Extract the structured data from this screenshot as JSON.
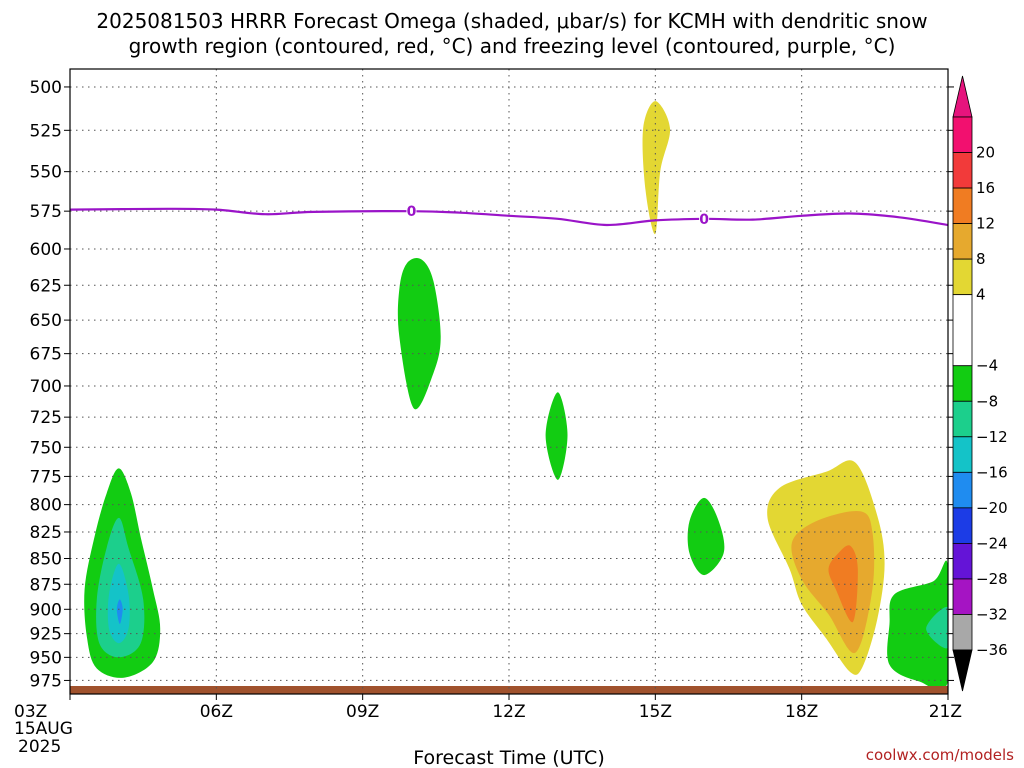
{
  "chart_data": {
    "type": "heatmap",
    "title_line1": "2025081503 HRRR Forecast Omega (shaded, μbar/s) for KCMH with dendritic snow",
    "title_line2": "growth region (contoured, red, °C) and freezing level (contoured, purple, °C)",
    "xlabel": "Forecast Time (UTC)",
    "x_ticks": [
      "03Z",
      "06Z",
      "09Z",
      "12Z",
      "15Z",
      "18Z",
      "21Z"
    ],
    "x_start_label": [
      "03Z",
      "15AUG",
      "2025"
    ],
    "xlim_hours": [
      3,
      21
    ],
    "y_ticks": [
      500,
      525,
      550,
      575,
      600,
      625,
      650,
      675,
      700,
      725,
      750,
      775,
      800,
      825,
      850,
      875,
      900,
      925,
      950,
      975
    ],
    "ylim_mb": [
      490,
      990
    ],
    "y_scale": "log",
    "grid": true,
    "colorbar": {
      "labels": [
        "20",
        "16",
        "12",
        "8",
        "4",
        "−4",
        "−8",
        "−12",
        "−16",
        "−20",
        "−24",
        "−28",
        "−32",
        "−36"
      ],
      "bands": [
        {
          "lo": 20,
          "hi": 24,
          "color": "#f2106f"
        },
        {
          "lo": 16,
          "hi": 20,
          "color": "#f23a3a"
        },
        {
          "lo": 12,
          "hi": 16,
          "color": "#f07c22"
        },
        {
          "lo": 8,
          "hi": 12,
          "color": "#e6a92e"
        },
        {
          "lo": 4,
          "hi": 8,
          "color": "#e3d733"
        },
        {
          "lo": -4,
          "hi": 4,
          "color": "#ffffff"
        },
        {
          "lo": -8,
          "hi": -4,
          "color": "#12cc12"
        },
        {
          "lo": -12,
          "hi": -8,
          "color": "#1ccf8c"
        },
        {
          "lo": -16,
          "hi": -12,
          "color": "#14c3c8"
        },
        {
          "lo": -20,
          "hi": -16,
          "color": "#1f8cf0"
        },
        {
          "lo": -24,
          "hi": -20,
          "color": "#1c3ce6"
        },
        {
          "lo": -28,
          "hi": -24,
          "color": "#6414d7"
        },
        {
          "lo": -32,
          "hi": -28,
          "color": "#a514c3"
        },
        {
          "lo": -36,
          "hi": -32,
          "color": "#a8a8a8"
        }
      ],
      "top_arrow_color": "#e6147d",
      "bottom_arrow_color": "#000000"
    },
    "freezing_level": {
      "color": "#9a14c8",
      "label": "0",
      "label_hours": [
        10,
        16
      ],
      "points": [
        [
          3,
          574
        ],
        [
          5,
          573.5
        ],
        [
          6,
          574
        ],
        [
          7,
          577
        ],
        [
          8,
          575.5
        ],
        [
          10,
          575
        ],
        [
          11,
          576
        ],
        [
          12,
          578
        ],
        [
          13,
          580
        ],
        [
          14,
          584
        ],
        [
          15,
          581
        ],
        [
          16,
          580
        ],
        [
          17,
          580.5
        ],
        [
          18,
          578
        ],
        [
          19,
          576.5
        ],
        [
          20,
          579
        ],
        [
          21,
          584
        ]
      ]
    },
    "omega_regions": [
      {
        "value": -4,
        "color": "#12cc12",
        "points": [
          [
            4.0,
            768
          ],
          [
            4.25,
            790
          ],
          [
            4.45,
            830
          ],
          [
            4.7,
            880
          ],
          [
            4.85,
            920
          ],
          [
            4.7,
            955
          ],
          [
            4.1,
            972
          ],
          [
            3.55,
            962
          ],
          [
            3.35,
            930
          ],
          [
            3.3,
            880
          ],
          [
            3.5,
            830
          ],
          [
            3.75,
            790
          ]
        ]
      },
      {
        "value": -8,
        "color": "#1ccf8c",
        "points": [
          [
            4.0,
            812
          ],
          [
            4.2,
            840
          ],
          [
            4.5,
            890
          ],
          [
            4.45,
            935
          ],
          [
            4.0,
            950
          ],
          [
            3.6,
            935
          ],
          [
            3.55,
            890
          ],
          [
            3.75,
            840
          ]
        ]
      },
      {
        "value": -12,
        "color": "#14c3c8",
        "points": [
          [
            4.0,
            855
          ],
          [
            4.2,
            885
          ],
          [
            4.2,
            920
          ],
          [
            4.0,
            935
          ],
          [
            3.8,
            920
          ],
          [
            3.8,
            885
          ]
        ]
      },
      {
        "value": -16,
        "color": "#1f8cf0",
        "points": [
          [
            4.02,
            890
          ],
          [
            4.08,
            900
          ],
          [
            4.02,
            915
          ],
          [
            3.96,
            900
          ]
        ]
      },
      {
        "value": -4,
        "color": "#12cc12",
        "points": [
          [
            10.2,
            607
          ],
          [
            10.45,
            622
          ],
          [
            10.6,
            662
          ],
          [
            10.45,
            690
          ],
          [
            10.05,
            718
          ],
          [
            9.75,
            662
          ],
          [
            9.75,
            628
          ],
          [
            9.9,
            610
          ]
        ]
      },
      {
        "value": -4,
        "color": "#12cc12",
        "points": [
          [
            13.0,
            705
          ],
          [
            13.2,
            740
          ],
          [
            13.0,
            778
          ],
          [
            12.75,
            740
          ]
        ]
      },
      {
        "value": -4,
        "color": "#12cc12",
        "points": [
          [
            16.0,
            794
          ],
          [
            16.3,
            815
          ],
          [
            16.4,
            845
          ],
          [
            16.0,
            866
          ],
          [
            15.7,
            845
          ],
          [
            15.7,
            815
          ]
        ]
      },
      {
        "value": -4,
        "color": "#12cc12",
        "points": [
          [
            20.7,
            872
          ],
          [
            21.0,
            857
          ],
          [
            21.0,
            976
          ],
          [
            20.4,
            976
          ],
          [
            19.8,
            958
          ],
          [
            19.8,
            915
          ],
          [
            19.9,
            885
          ]
        ]
      },
      {
        "value": -8,
        "color": "#1ccf8c",
        "points": [
          [
            21.0,
            898
          ],
          [
            21.0,
            940
          ],
          [
            20.55,
            920
          ]
        ]
      },
      {
        "value": 4,
        "color": "#e3d733",
        "points": [
          [
            15.0,
            508
          ],
          [
            15.3,
            524
          ],
          [
            15.1,
            550
          ],
          [
            15.0,
            590
          ],
          [
            14.8,
            562
          ],
          [
            14.75,
            524
          ]
        ]
      },
      {
        "value": 4,
        "color": "#e3d733",
        "points": [
          [
            19.1,
            763
          ],
          [
            19.55,
            810
          ],
          [
            19.7,
            855
          ],
          [
            19.55,
            910
          ],
          [
            19.25,
            960
          ],
          [
            19.0,
            966
          ],
          [
            18.5,
            930
          ],
          [
            18.0,
            895
          ],
          [
            17.75,
            860
          ],
          [
            17.3,
            812
          ],
          [
            17.55,
            785
          ],
          [
            18.5,
            771
          ]
        ]
      },
      {
        "value": 8,
        "color": "#e6a92e",
        "points": [
          [
            19.2,
            806
          ],
          [
            19.45,
            825
          ],
          [
            19.45,
            880
          ],
          [
            19.1,
            945
          ],
          [
            18.55,
            905
          ],
          [
            18.0,
            870
          ],
          [
            17.8,
            835
          ],
          [
            18.3,
            815
          ]
        ]
      },
      {
        "value": 12,
        "color": "#f07c22",
        "points": [
          [
            19.0,
            838
          ],
          [
            19.15,
            860
          ],
          [
            19.05,
            913
          ],
          [
            18.7,
            880
          ],
          [
            18.55,
            860
          ],
          [
            18.75,
            845
          ]
        ]
      }
    ],
    "ground": {
      "color": "#a0522d"
    },
    "credit": "coolwx.com/models"
  }
}
